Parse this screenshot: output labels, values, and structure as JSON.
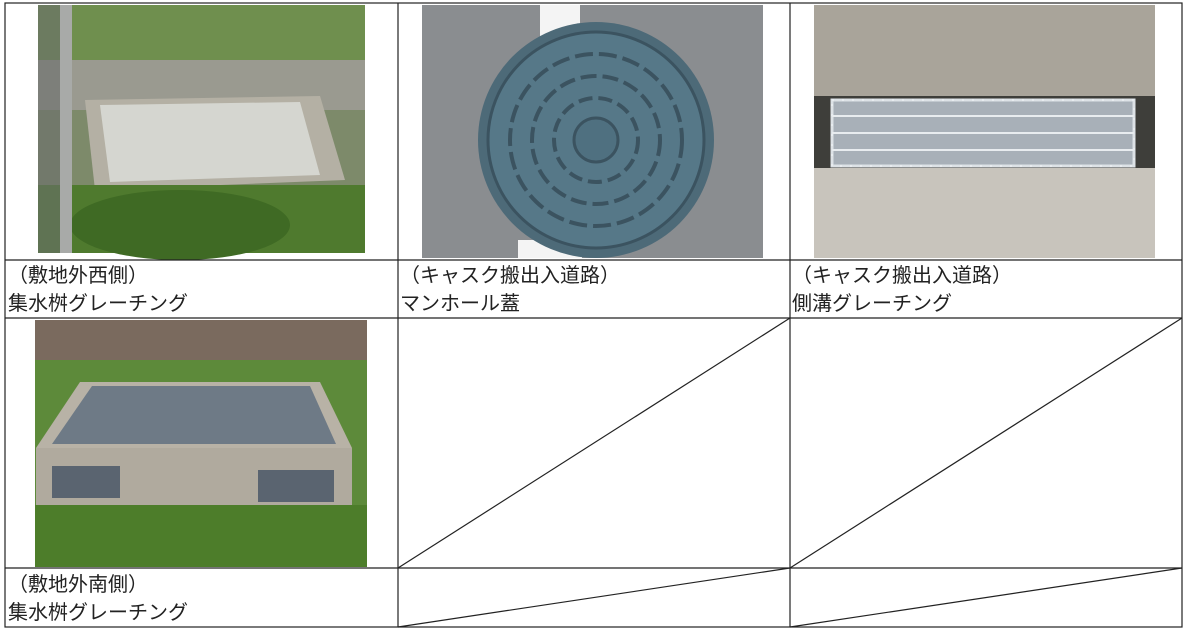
{
  "table": {
    "captions": [
      {
        "location": "（敷地外西側）",
        "name": "集水桝グレーチング"
      },
      {
        "location": "（キャスク搬出入道路）",
        "name": "マンホール蓋"
      },
      {
        "location": "（キャスク搬出入道路）",
        "name": "側溝グレーチング"
      },
      {
        "location": "（敷地外南側）",
        "name": "集水桝グレーチング"
      }
    ]
  }
}
